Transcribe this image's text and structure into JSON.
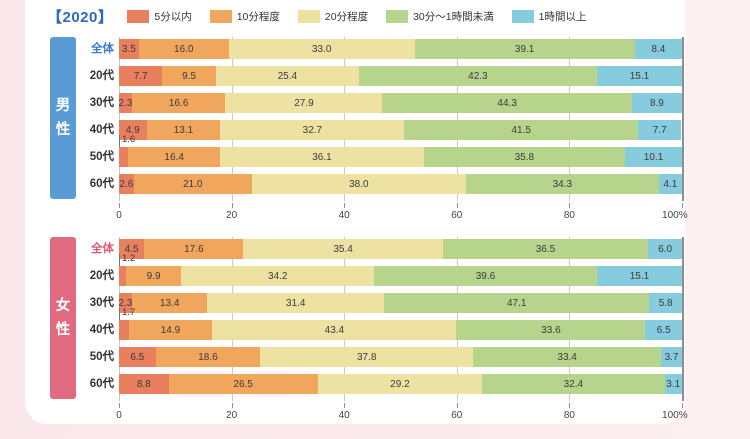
{
  "title": "【2020】",
  "legend": [
    {
      "label": "5分以内",
      "color": "#E8805F"
    },
    {
      "label": "10分程度",
      "color": "#F0A65C"
    },
    {
      "label": "20分程度",
      "color": "#EDE2A2"
    },
    {
      "label": "30分～1時間未満",
      "color": "#B7D48C"
    },
    {
      "label": "1時間以上",
      "color": "#86CBDE"
    }
  ],
  "chart_data": [
    {
      "type": "bar",
      "stacked": true,
      "orientation": "horizontal",
      "group_label": "男性",
      "group_color": "#5B9BD5",
      "highlight_row_label_color": "#3B7AC8",
      "categories": [
        "全体",
        "20代",
        "30代",
        "40代",
        "50代",
        "60代"
      ],
      "series": [
        {
          "name": "5分以内",
          "values": [
            3.5,
            7.7,
            2.3,
            4.9,
            1.6,
            2.6
          ]
        },
        {
          "name": "10分程度",
          "values": [
            16.0,
            9.5,
            16.6,
            13.1,
            16.4,
            21.0
          ]
        },
        {
          "name": "20分程度",
          "values": [
            33.0,
            25.4,
            27.9,
            32.7,
            36.1,
            38.0
          ]
        },
        {
          "name": "30分～1時間未満",
          "values": [
            39.1,
            42.3,
            44.3,
            41.5,
            35.8,
            34.3
          ]
        },
        {
          "name": "1時間以上",
          "values": [
            8.4,
            15.1,
            8.9,
            7.7,
            10.1,
            4.1
          ]
        }
      ],
      "xlim": [
        0,
        100
      ],
      "tick_values": [
        0,
        20,
        40,
        60,
        80,
        100
      ],
      "tick_labels": [
        "0",
        "20",
        "40",
        "60",
        "80",
        "100%"
      ],
      "grid": true,
      "legend_position": "top"
    },
    {
      "type": "bar",
      "stacked": true,
      "orientation": "horizontal",
      "group_label": "女性",
      "group_color": "#E06B80",
      "highlight_row_label_color": "#E25872",
      "categories": [
        "全体",
        "20代",
        "30代",
        "40代",
        "50代",
        "60代"
      ],
      "series": [
        {
          "name": "5分以内",
          "values": [
            4.5,
            1.2,
            2.3,
            1.7,
            6.5,
            8.8
          ]
        },
        {
          "name": "10分程度",
          "values": [
            17.6,
            9.9,
            13.4,
            14.9,
            18.6,
            26.5
          ]
        },
        {
          "name": "20分程度",
          "values": [
            35.4,
            34.2,
            31.4,
            43.4,
            37.8,
            29.2
          ]
        },
        {
          "name": "30分～1時間未満",
          "values": [
            36.5,
            39.6,
            47.1,
            33.6,
            33.4,
            32.4
          ]
        },
        {
          "name": "1時間以上",
          "values": [
            6.0,
            15.1,
            5.8,
            6.5,
            3.7,
            3.1
          ]
        }
      ],
      "xlim": [
        0,
        100
      ],
      "tick_values": [
        0,
        20,
        40,
        60,
        80,
        100
      ],
      "tick_labels": [
        "0",
        "20",
        "40",
        "60",
        "80",
        "100%"
      ],
      "grid": true,
      "legend_position": "top"
    }
  ]
}
